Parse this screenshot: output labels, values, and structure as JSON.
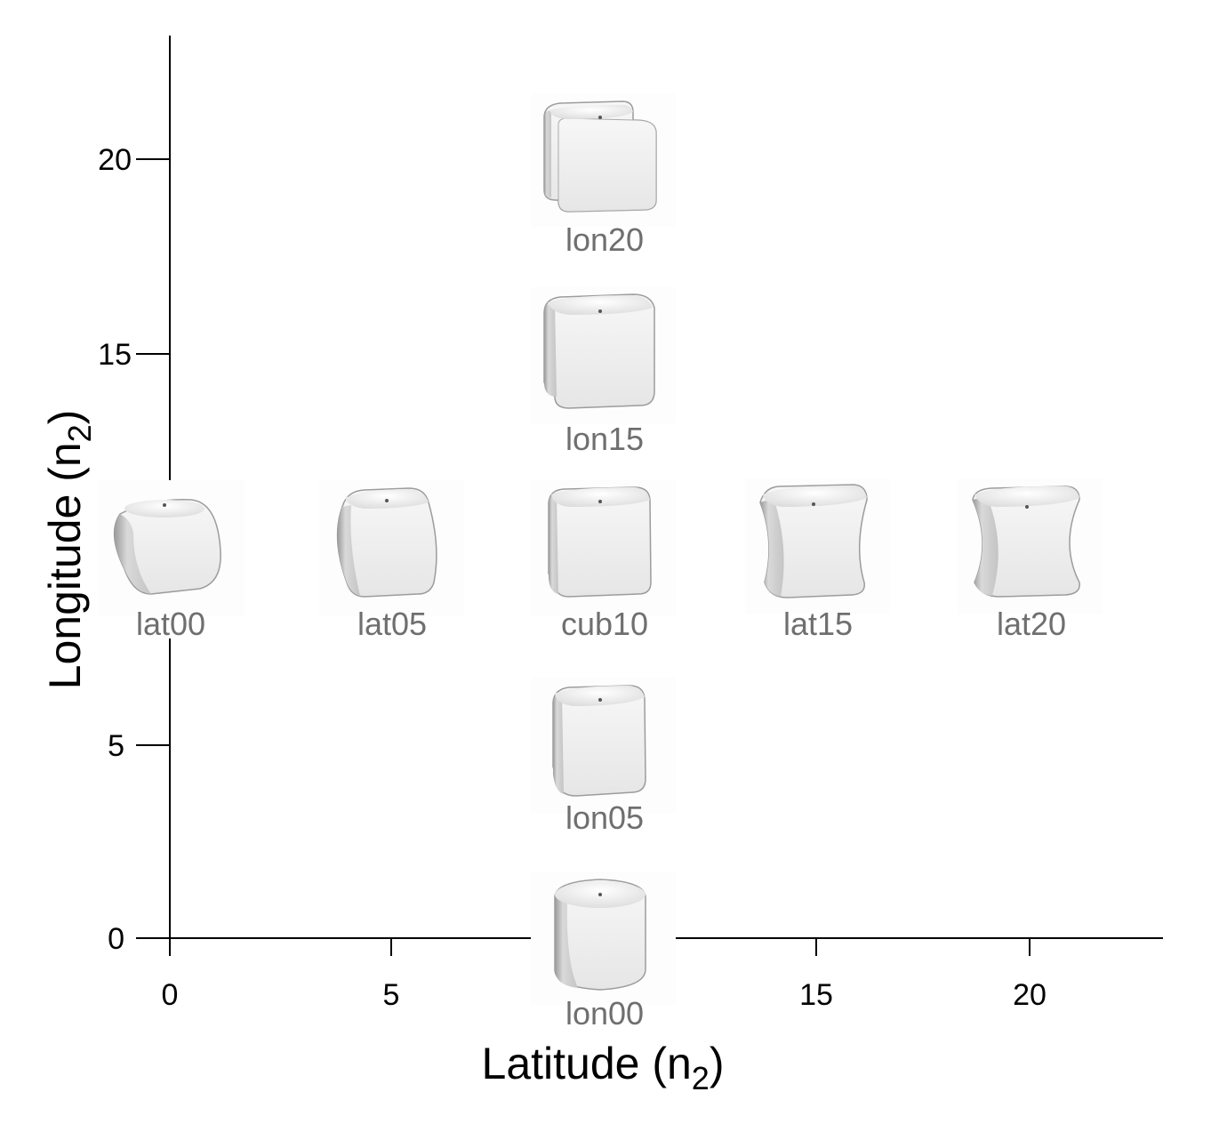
{
  "axes": {
    "x_title_main": "Latitude (n",
    "x_title_sub": "2",
    "x_title_end": ")",
    "y_title_main": "Longitude (n",
    "y_title_sub": "2",
    "y_title_end": ")",
    "x_ticks": [
      "0",
      "5",
      "15",
      "20"
    ],
    "y_ticks": [
      "0",
      "5",
      "15",
      "20"
    ]
  },
  "shapes": [
    {
      "id": "lat00",
      "label": "lat00",
      "latitude": 0,
      "longitude": 10,
      "form": "rounded-barrel"
    },
    {
      "id": "lat05",
      "label": "lat05",
      "latitude": 5,
      "longitude": 10,
      "form": "convex-cube"
    },
    {
      "id": "cub10",
      "label": "cub10",
      "latitude": 10,
      "longitude": 10,
      "form": "cube"
    },
    {
      "id": "lat15",
      "label": "lat15",
      "latitude": 15,
      "longitude": 10,
      "form": "concave-cube"
    },
    {
      "id": "lat20",
      "label": "lat20",
      "latitude": 20,
      "longitude": 10,
      "form": "strongly-concave-cube"
    },
    {
      "id": "lon00",
      "label": "lon00",
      "latitude": 10,
      "longitude": 0,
      "form": "cylinder"
    },
    {
      "id": "lon05",
      "label": "lon05",
      "latitude": 10,
      "longitude": 5,
      "form": "rounded-cube"
    },
    {
      "id": "lon15",
      "label": "lon15",
      "latitude": 10,
      "longitude": 15,
      "form": "pinched-cube"
    },
    {
      "id": "lon20",
      "label": "lon20",
      "latitude": 10,
      "longitude": 20,
      "form": "flanged-cube"
    }
  ],
  "colors": {
    "axis": "#000000",
    "label": "#6f6f6f",
    "surface_light": "#f6f6f6",
    "surface_dark": "#a8a8a8"
  }
}
